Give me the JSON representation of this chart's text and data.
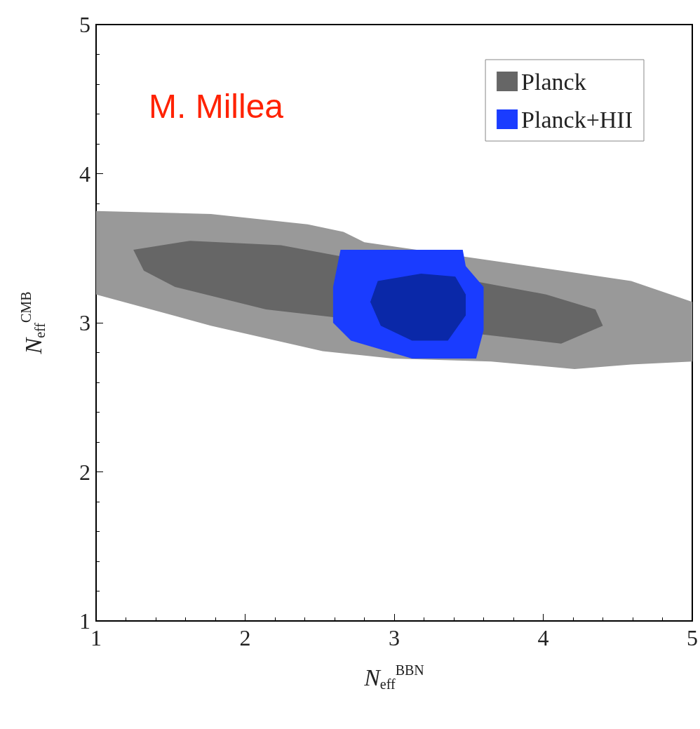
{
  "chart_data": {
    "type": "area",
    "xlabel": "N$_{eff}$$^{BBN}$",
    "ylabel": "N$_{eff}$$^{CMB}$",
    "xlim": [
      1,
      5
    ],
    "ylim": [
      1,
      5
    ],
    "xticks": [
      1,
      2,
      3,
      4,
      5
    ],
    "yticks": [
      1,
      2,
      3,
      4,
      5
    ],
    "grid": false,
    "legend": "top right",
    "annotations": [
      "M. Millea"
    ],
    "series": [
      {
        "color": "#999999",
        "x": [
          1,
          1.77,
          2.42,
          2.66,
          2.8,
          4.12,
          4.59,
          5,
          5,
          4.59,
          4.21,
          3.65,
          2.99,
          2.52,
          1.77,
          1
        ],
        "values": [
          3.75,
          3.73,
          3.66,
          3.61,
          3.54,
          3.35,
          3.28,
          3.14,
          2.74,
          2.72,
          2.69,
          2.74,
          2.76,
          2.81,
          2.98,
          3.19
        ]
      },
      {
        "name": "Planck",
        "color": "#666666",
        "x": [
          1.25,
          1.63,
          2.24,
          4.02,
          4.35,
          4.4,
          4.12,
          2.14,
          1.53,
          1.32
        ],
        "values": [
          3.49,
          3.55,
          3.52,
          3.19,
          3.09,
          2.98,
          2.86,
          3.09,
          3.24,
          3.35
        ]
      },
      {
        "name": "Planck+HII",
        "color": "#1a3cff",
        "x": [
          2.64,
          3.46,
          3.48,
          3.6,
          3.6,
          3.55,
          3.12,
          2.71,
          2.59,
          2.59
        ],
        "values": [
          3.49,
          3.49,
          3.38,
          3.24,
          2.95,
          2.76,
          2.76,
          2.88,
          3.0,
          3.24
        ]
      },
      {
        "color": "#0a28a8",
        "x": [
          2.89,
          3.18,
          3.41,
          3.48,
          3.48,
          3.36,
          3.12,
          2.91,
          2.84
        ],
        "values": [
          3.28,
          3.33,
          3.31,
          3.19,
          3.05,
          2.88,
          2.88,
          2.98,
          3.14
        ]
      }
    ]
  }
}
